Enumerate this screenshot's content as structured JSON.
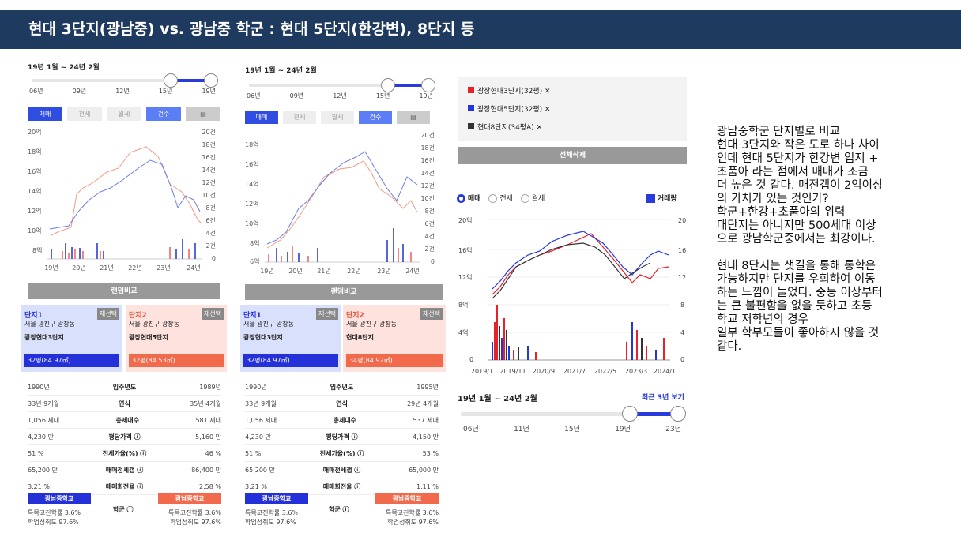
{
  "title": "현대 3단지(광남중) vs. 광남중 학군 : 현대 5단지(한강변), 8단지 등",
  "left": {
    "period": "19년 1월 ~ 24년 2월",
    "slider_ticks": [
      "06년",
      "09년",
      "12년",
      "15년",
      "19년"
    ],
    "tabs": [
      "매매",
      "전세",
      "월세",
      "건수"
    ],
    "y_left": [
      "20억",
      "18억",
      "16억",
      "14억",
      "12억",
      "10억",
      "8억"
    ],
    "y_right": [
      "20건",
      "18건",
      "16건",
      "14건",
      "12건",
      "10건",
      "8건",
      "6건",
      "4건",
      "2건",
      "0"
    ],
    "x": [
      "19년",
      "20년",
      "21년",
      "22년",
      "23년",
      "24년"
    ],
    "rank_btn": "랜덤비교",
    "c1": {
      "tag": "단지1",
      "re": "재선택",
      "addr": "서울 광진구 광장동",
      "name": "광장현대3단지",
      "size": "32평(84.97㎡)"
    },
    "c2": {
      "tag": "단지2",
      "re": "재선택",
      "addr": "서울 광진구 광장동",
      "name": "광장현대5단지",
      "size": "32평(84.53㎡)"
    },
    "stats": [
      [
        "1990년",
        "입주년도",
        "1989년"
      ],
      [
        "33년 9개월",
        "연식",
        "35년 4개월"
      ],
      [
        "1,056 세대",
        "총세대수",
        "581 세대"
      ],
      [
        "4,230 만",
        "평당가격 ⓘ",
        "5,160 만"
      ],
      [
        "51 %",
        "전세가율(%) ⓘ",
        "46 %"
      ],
      [
        "65,200 만",
        "매매전세갭 ⓘ",
        "86,400 만"
      ],
      [
        "3.21 %",
        "매매회전율 ⓘ",
        "2.58 %"
      ]
    ],
    "school": {
      "a": "광남중학교",
      "b": "광남중학교",
      "label": "학군 ⓘ",
      "l1": "특목고진학률 3.6%",
      "l2": "학업성취도 97.6%",
      "r1": "특목고진학률 3.6%",
      "r2": "학업성취도 97.6%"
    }
  },
  "mid": {
    "period": "19년 1월 ~ 24년 2월",
    "slider_ticks": [
      "06년",
      "09년",
      "12년",
      "15년",
      "19년"
    ],
    "tabs": [
      "매매",
      "전세",
      "월세",
      "건수"
    ],
    "y_left": [
      "18억",
      "16억",
      "14억",
      "12억",
      "10억",
      "8억",
      "6억"
    ],
    "y_right": [
      "20건",
      "18건",
      "16건",
      "14건",
      "12건",
      "10건",
      "8건",
      "6건",
      "4건",
      "2건",
      "0"
    ],
    "x": [
      "19년",
      "20년",
      "21년",
      "22년",
      "23년",
      "24년"
    ],
    "rank_btn": "랜덤비교",
    "c1": {
      "tag": "단지1",
      "re": "재선택",
      "addr": "서울 광진구 광장동",
      "name": "광장현대3단지",
      "size": "32평(84.97㎡)"
    },
    "c2": {
      "tag": "단지2",
      "re": "재선택",
      "addr": "서울 광진구 광장동",
      "name": "현대8단지",
      "size": "34평(84.92㎡)"
    },
    "stats": [
      [
        "1990년",
        "입주년도",
        "1995년"
      ],
      [
        "33년 9개월",
        "연식",
        "29년 4개월"
      ],
      [
        "1,056 세대",
        "총세대수",
        "537 세대"
      ],
      [
        "4,230 만",
        "평당가격 ⓘ",
        "4,150 만"
      ],
      [
        "51 %",
        "전세가율(%) ⓘ",
        "53 %"
      ],
      [
        "65,200 만",
        "매매전세갭 ⓘ",
        "65,000 만"
      ],
      [
        "3.21 %",
        "매매회전율 ⓘ",
        "1.11 %"
      ]
    ],
    "school": {
      "a": "광남중학교",
      "b": "광남중학교",
      "label": "학군 ⓘ",
      "l1": "특목고진학률 3.6%",
      "l2": "학업성취도 97.6%",
      "r1": "특목고진학률 3.6%",
      "r2": "학업성취도 97.6%"
    }
  },
  "right": {
    "legend": [
      "광장현대3단지(32평) ✕",
      "광장현대5단지(32평) ✕",
      "현대8단지(34평A) ✕"
    ],
    "legend_colors": [
      "#e8202a",
      "#2236e0",
      "#333333"
    ],
    "clear_btn": "전체삭제",
    "radios": [
      "매매",
      "전세",
      "월세"
    ],
    "volume": "거래량",
    "y_left": [
      "20억",
      "16억",
      "12억",
      "8억",
      "4억",
      "0"
    ],
    "y_right": [
      "20",
      "16",
      "12",
      "8",
      "4",
      "0"
    ],
    "x": [
      "2019/1",
      "2019/11",
      "2020/9",
      "2021/7",
      "2022/5",
      "2023/3",
      "2024/1"
    ],
    "period": "19년 1월 ~ 24년 2월",
    "recent": "최근 3년 보기",
    "slider_ticks": [
      "06년",
      "11년",
      "15년",
      "19년",
      "23년"
    ]
  },
  "note": {
    "p1": [
      "광남중학군 단지별로 비교",
      "현대 3단지와 작은 도로 하나 차이",
      "인데 현대 5단지가 한강변 입지 +",
      "초품아 라는 점에서 매매가 조금",
      "더 높은 것 같다. 매전갭이 2억이상",
      "의 가치가 있는 것인가?",
      "학군+한강+초품아의 위력",
      "대단지는 아니지만 500세대 이상",
      "으로 광남학군중에서는 최강이다."
    ],
    "p2": [
      "현대 8단지는 샛길을 통해 통학은",
      "가능하지만 단지를 우회하여 이동",
      "하는 느낌이 들었다. 중등 이상부터",
      "는 큰 불편함을 없을 듯하고 초등",
      "학교 저학년의 경우",
      "일부 학부모들이 좋아하지 않을 것",
      "같다."
    ]
  }
}
